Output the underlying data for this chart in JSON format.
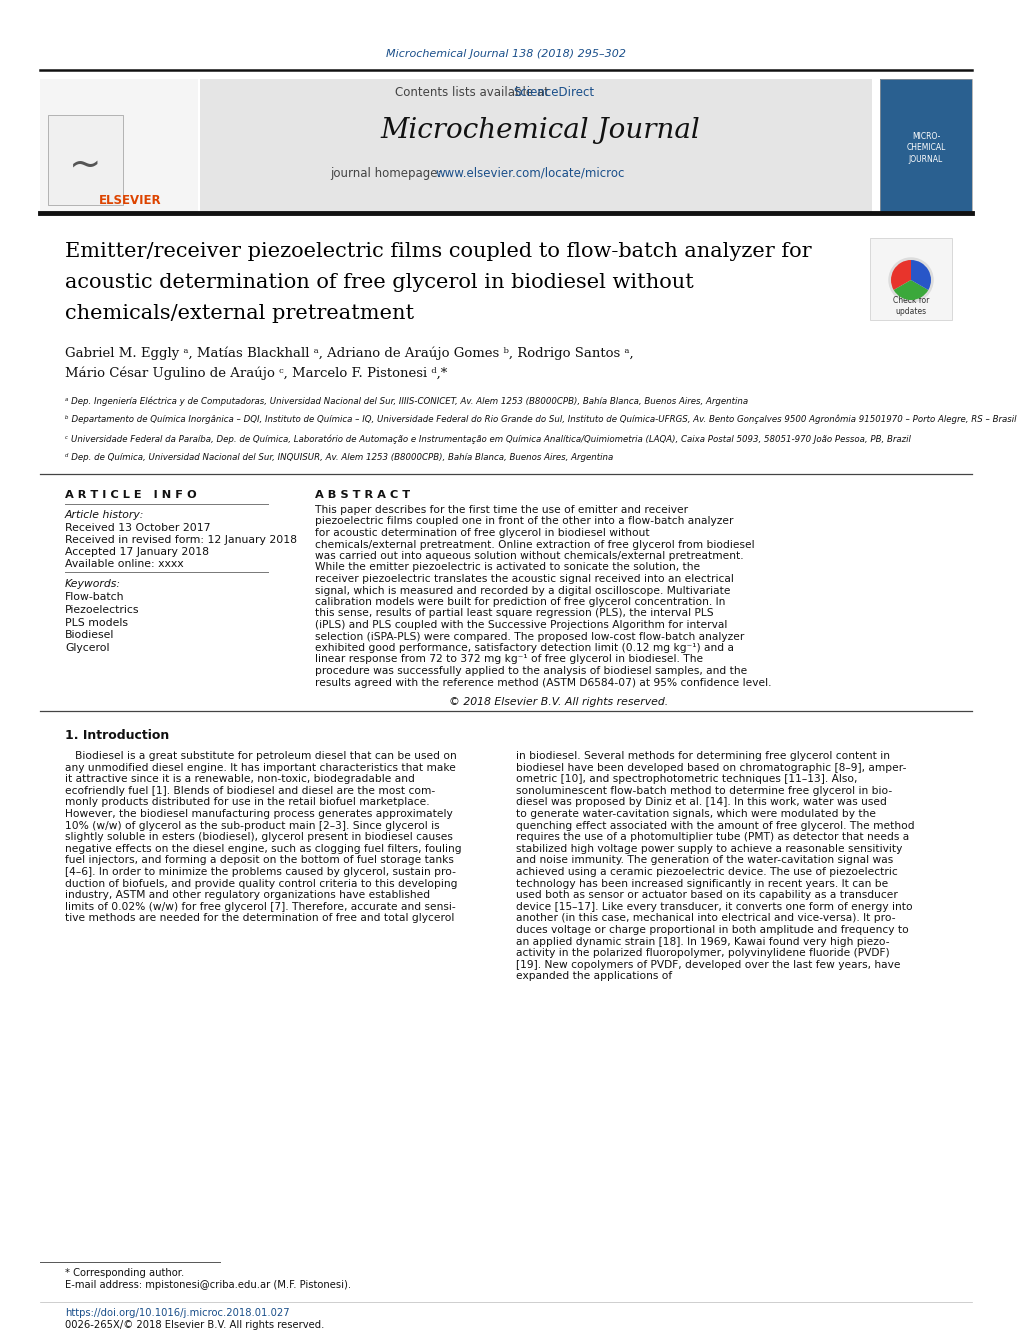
{
  "page_bg": "#ffffff",
  "top_citation": "Microchemical Journal 138 (2018) 295–302",
  "top_citation_color": "#1a4f8a",
  "journal_name": "Microchemical Journal",
  "contents_text": "Contents lists available at ",
  "science_direct": "ScienceDirect",
  "journal_homepage_label": "journal homepage: ",
  "journal_url": "www.elsevier.com/locate/microc",
  "header_bg": "#e5e5e5",
  "article_title_line1": "Emitter/receiver piezoelectric films coupled to flow-batch analyzer for",
  "article_title_line2": "acoustic determination of free glycerol in biodiesel without",
  "article_title_line3": "chemicals/external pretreatment",
  "authors_line1": "Gabriel M. Eggly ᵃ, Matías Blackhall ᵃ, Adriano de Araújo Gomes ᵇ, Rodrigo Santos ᵃ,",
  "authors_line2": "Mário César Ugulino de Araújo ᶜ, Marcelo F. Pistonesi ᵈ,*",
  "aff_a": "ᵃ Dep. Ingeniería Eléctrica y de Computadoras, Universidad Nacional del Sur, IIIIS-CONICET, Av. Alem 1253 (B8000CPB), Bahía Blanca, Buenos Aires, Argentina",
  "aff_b": "ᵇ Departamento de Química Inorgânica – DQI, Instituto de Química – IQ, Universidade Federal do Rio Grande do Sul, Instituto de Química-UFRGS, Av. Bento Gonçalves 9500 Agronômia 91501970 – Porto Alegre, RS – Brasil",
  "aff_c": "ᶜ Universidade Federal da Paraíba, Dep. de Química, Laboratório de Automação e Instrumentação em Química Analítica/Quimiometria (LAQA), Caixa Postal 5093, 58051-970 João Pessoa, PB, Brazil",
  "aff_d": "ᵈ Dep. de Química, Universidad Nacional del Sur, INQUISUR, Av. Alem 1253 (B8000CPB), Bahía Blanca, Buenos Aires, Argentina",
  "article_info_chars": "A R T I C L E   I N F O",
  "abstract_chars": "A B S T R A C T",
  "article_history_label": "Article history:",
  "received": "Received 13 October 2017",
  "revised": "Received in revised form: 12 January 2018",
  "accepted": "Accepted 17 January 2018",
  "available": "Available online: xxxx",
  "keywords_label": "Keywords:",
  "keywords": [
    "Flow-batch",
    "Piezoelectrics",
    "PLS models",
    "Biodiesel",
    "Glycerol"
  ],
  "abstract_text": "This paper describes for the first time the use of emitter and receiver piezoelectric films coupled one in front of the other into a flow-batch analyzer for acoustic determination of free glycerol in biodiesel without chemicals/external pretreatment. Online extraction of free glycerol from biodiesel was carried out into aqueous solution without chemicals/external pretreatment. While the emitter piezoelectric is activated to sonicate the solution, the receiver piezoelectric translates the acoustic signal received into an electrical signal, which is measured and recorded by a digital oscilloscope. Multivariate calibration models were built for prediction of free glycerol concentration. In this sense, results of partial least square regression (PLS), the interval PLS (iPLS) and PLS coupled with the Successive Projections Algorithm for interval selection (iSPA-PLS) were compared. The proposed low-cost flow-batch analyzer exhibited good performance, satisfactory detection limit (0.12 mg kg⁻¹) and a linear response from 72 to 372 mg kg⁻¹ of free glycerol in biodiesel. The procedure was successfully applied to the analysis of biodiesel samples, and the results agreed with the reference method (ASTM D6584-07) at 95% confidence level.",
  "copyright": "© 2018 Elsevier B.V. All rights reserved.",
  "intro_title": "1. Introduction",
  "intro_col1_lines": [
    "   Biodiesel is a great substitute for petroleum diesel that can be used on",
    "any unmodified diesel engine. It has important characteristics that make",
    "it attractive since it is a renewable, non-toxic, biodegradable and",
    "ecofriendly fuel [1]. Blends of biodiesel and diesel are the most com-",
    "monly products distributed for use in the retail biofuel marketplace.",
    "However, the biodiesel manufacturing process generates approximately",
    "10% (w/w) of glycerol as the sub-product main [2–3]. Since glycerol is",
    "slightly soluble in esters (biodiesel), glycerol present in biodiesel causes",
    "negative effects on the diesel engine, such as clogging fuel filters, fouling",
    "fuel injectors, and forming a deposit on the bottom of fuel storage tanks",
    "[4–6]. In order to minimize the problems caused by glycerol, sustain pro-",
    "duction of biofuels, and provide quality control criteria to this developing",
    "industry, ASTM and other regulatory organizations have established",
    "limits of 0.02% (w/w) for free glycerol [7]. Therefore, accurate and sensi-",
    "tive methods are needed for the determination of free and total glycerol"
  ],
  "intro_col2_lines": [
    "in biodiesel. Several methods for determining free glycerol content in",
    "biodiesel have been developed based on chromatographic [8–9], amper-",
    "ometric [10], and spectrophotometric techniques [11–13]. Also,",
    "sonoluminescent flow-batch method to determine free glycerol in bio-",
    "diesel was proposed by Diniz et al. [14]. In this work, water was used",
    "to generate water-cavitation signals, which were modulated by the",
    "quenching effect associated with the amount of free glycerol. The method",
    "requires the use of a photomultiplier tube (PMT) as detector that needs a",
    "stabilized high voltage power supply to achieve a reasonable sensitivity",
    "and noise immunity. The generation of the water-cavitation signal was",
    "achieved using a ceramic piezoelectric device. The use of piezoelectric",
    "technology has been increased significantly in recent years. It can be",
    "used both as sensor or actuator based on its capability as a transducer",
    "device [15–17]. Like every transducer, it converts one form of energy into",
    "another (in this case, mechanical into electrical and vice-versa). It pro-",
    "duces voltage or charge proportional in both amplitude and frequency to",
    "an applied dynamic strain [18]. In 1969, Kawai found very high piezo-",
    "activity in the polarized fluoropolymer, polyvinylidene fluoride (PVDF)",
    "[19]. New copolymers of PVDF, developed over the last few years, have",
    "expanded the applications of"
  ],
  "footer_note": "* Corresponding author.",
  "footer_email": "E-mail address: mpistonesi@criba.edu.ar (M.F. Pistonesi).",
  "doi": "https://doi.org/10.1016/j.microc.2018.01.027",
  "issn": "0026-265X/© 2018 Elsevier B.V. All rights reserved.",
  "link_color": "#1a4f8a",
  "elsevier_color": "#dd4400",
  "text_color": "#000000",
  "gray_color": "#333333"
}
